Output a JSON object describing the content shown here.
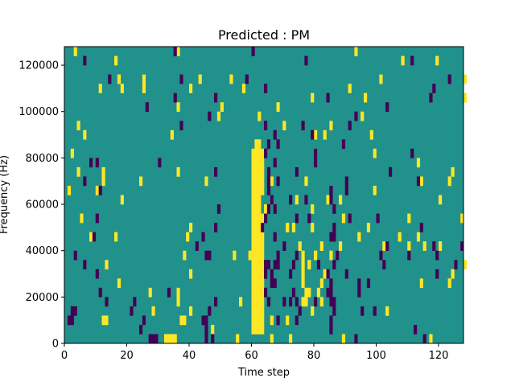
{
  "chart_data": {
    "type": "heatmap",
    "title": "Predicted : PM",
    "xlabel": "Time step",
    "ylabel": "Frequency (Hz)",
    "xlim": [
      0,
      128
    ],
    "ylim": [
      0,
      128000
    ],
    "xticks": [
      "0",
      "20",
      "40",
      "60",
      "80",
      "100",
      "120"
    ],
    "xtick_values": [
      0,
      20,
      40,
      60,
      80,
      100,
      120
    ],
    "yticks": [
      "0",
      "20000",
      "40000",
      "60000",
      "80000",
      "100000",
      "120000"
    ],
    "ytick_values": [
      0,
      20000,
      40000,
      60000,
      80000,
      100000,
      120000
    ],
    "grid": false,
    "colors": {
      "background": "#21918c",
      "high": "#fde725",
      "low": "#440154"
    },
    "bin_size": {
      "time": 1,
      "frequency": 4000
    },
    "high_cells": [
      [
        3,
        124000
      ],
      [
        16,
        120000
      ],
      [
        36,
        124000
      ],
      [
        93,
        124000
      ],
      [
        108,
        120000
      ],
      [
        119,
        120000
      ],
      [
        17,
        112000
      ],
      [
        25,
        112000
      ],
      [
        43,
        112000
      ],
      [
        53,
        112000
      ],
      [
        101,
        112000
      ],
      [
        128,
        112000
      ],
      [
        11,
        108000
      ],
      [
        18,
        108000
      ],
      [
        25,
        108000
      ],
      [
        40,
        108000
      ],
      [
        57,
        108000
      ],
      [
        91,
        108000
      ],
      [
        79,
        104000
      ],
      [
        96,
        104000
      ],
      [
        128,
        104000
      ],
      [
        36,
        100000
      ],
      [
        50,
        100000
      ],
      [
        68,
        100000
      ],
      [
        49,
        96000
      ],
      [
        62,
        96000
      ],
      [
        95,
        96000
      ],
      [
        4,
        92000
      ],
      [
        70,
        92000
      ],
      [
        85,
        92000
      ],
      [
        6,
        88000
      ],
      [
        34,
        88000
      ],
      [
        80,
        88000
      ],
      [
        83,
        88000
      ],
      [
        98,
        88000
      ],
      [
        61,
        84000
      ],
      [
        62,
        84000
      ],
      [
        60,
        80000
      ],
      [
        61,
        80000
      ],
      [
        62,
        80000
      ],
      [
        63,
        80000
      ],
      [
        2,
        80000
      ],
      [
        99,
        80000
      ],
      [
        60,
        76000
      ],
      [
        61,
        76000
      ],
      [
        62,
        76000
      ],
      [
        63,
        76000
      ],
      [
        113,
        76000
      ],
      [
        60,
        72000
      ],
      [
        61,
        72000
      ],
      [
        62,
        72000
      ],
      [
        63,
        72000
      ],
      [
        4,
        72000
      ],
      [
        12,
        72000
      ],
      [
        36,
        72000
      ],
      [
        124,
        72000
      ],
      [
        60,
        68000
      ],
      [
        61,
        68000
      ],
      [
        62,
        68000
      ],
      [
        63,
        68000
      ],
      [
        66,
        68000
      ],
      [
        12,
        68000
      ],
      [
        24,
        68000
      ],
      [
        45,
        68000
      ],
      [
        77,
        68000
      ],
      [
        114,
        68000
      ],
      [
        123,
        68000
      ],
      [
        60,
        64000
      ],
      [
        61,
        64000
      ],
      [
        62,
        64000
      ],
      [
        63,
        64000
      ],
      [
        1,
        64000
      ],
      [
        10,
        64000
      ],
      [
        99,
        64000
      ],
      [
        60,
        60000
      ],
      [
        61,
        60000
      ],
      [
        62,
        60000
      ],
      [
        66,
        60000
      ],
      [
        18,
        60000
      ],
      [
        74,
        60000
      ],
      [
        84,
        60000
      ],
      [
        88,
        60000
      ],
      [
        120,
        60000
      ],
      [
        60,
        56000
      ],
      [
        61,
        56000
      ],
      [
        62,
        56000
      ],
      [
        64,
        56000
      ],
      [
        79,
        56000
      ],
      [
        60,
        52000
      ],
      [
        61,
        52000
      ],
      [
        62,
        52000
      ],
      [
        63,
        52000
      ],
      [
        5,
        52000
      ],
      [
        89,
        52000
      ],
      [
        110,
        52000
      ],
      [
        127,
        52000
      ],
      [
        60,
        48000
      ],
      [
        61,
        48000
      ],
      [
        62,
        48000
      ],
      [
        63,
        48000
      ],
      [
        40,
        48000
      ],
      [
        71,
        48000
      ],
      [
        73,
        48000
      ],
      [
        79,
        48000
      ],
      [
        97,
        48000
      ],
      [
        60,
        44000
      ],
      [
        61,
        44000
      ],
      [
        62,
        44000
      ],
      [
        63,
        44000
      ],
      [
        8,
        44000
      ],
      [
        16,
        44000
      ],
      [
        39,
        44000
      ],
      [
        94,
        44000
      ],
      [
        107,
        44000
      ],
      [
        113,
        44000
      ],
      [
        60,
        40000
      ],
      [
        61,
        40000
      ],
      [
        62,
        40000
      ],
      [
        63,
        40000
      ],
      [
        75,
        40000
      ],
      [
        82,
        40000
      ],
      [
        88,
        40000
      ],
      [
        102,
        40000
      ],
      [
        110,
        40000
      ],
      [
        115,
        40000
      ],
      [
        120,
        40000
      ],
      [
        59,
        36000
      ],
      [
        60,
        36000
      ],
      [
        61,
        36000
      ],
      [
        62,
        36000
      ],
      [
        63,
        36000
      ],
      [
        76,
        36000
      ],
      [
        80,
        36000
      ],
      [
        85,
        36000
      ],
      [
        38,
        36000
      ],
      [
        54,
        36000
      ],
      [
        87,
        36000
      ],
      [
        60,
        32000
      ],
      [
        61,
        32000
      ],
      [
        62,
        32000
      ],
      [
        63,
        32000
      ],
      [
        76,
        32000
      ],
      [
        78,
        32000
      ],
      [
        13,
        32000
      ],
      [
        128,
        32000
      ],
      [
        60,
        28000
      ],
      [
        61,
        28000
      ],
      [
        62,
        28000
      ],
      [
        63,
        28000
      ],
      [
        76,
        28000
      ],
      [
        83,
        28000
      ],
      [
        40,
        28000
      ],
      [
        124,
        28000
      ],
      [
        60,
        24000
      ],
      [
        61,
        24000
      ],
      [
        62,
        24000
      ],
      [
        63,
        24000
      ],
      [
        76,
        24000
      ],
      [
        82,
        24000
      ],
      [
        17,
        24000
      ],
      [
        114,
        24000
      ],
      [
        123,
        24000
      ],
      [
        60,
        20000
      ],
      [
        61,
        20000
      ],
      [
        62,
        20000
      ],
      [
        63,
        20000
      ],
      [
        77,
        20000
      ],
      [
        78,
        20000
      ],
      [
        81,
        20000
      ],
      [
        27,
        20000
      ],
      [
        36,
        20000
      ],
      [
        60,
        16000
      ],
      [
        61,
        16000
      ],
      [
        62,
        16000
      ],
      [
        63,
        16000
      ],
      [
        56,
        16000
      ],
      [
        76,
        16000
      ],
      [
        77,
        16000
      ],
      [
        82,
        16000
      ],
      [
        36,
        16000
      ],
      [
        60,
        12000
      ],
      [
        61,
        12000
      ],
      [
        62,
        12000
      ],
      [
        63,
        12000
      ],
      [
        40,
        12000
      ],
      [
        28,
        12000
      ],
      [
        79,
        12000
      ],
      [
        103,
        12000
      ],
      [
        60,
        8000
      ],
      [
        61,
        8000
      ],
      [
        62,
        8000
      ],
      [
        63,
        8000
      ],
      [
        12,
        8000
      ],
      [
        13,
        8000
      ],
      [
        37,
        8000
      ],
      [
        38,
        8000
      ],
      [
        66,
        8000
      ],
      [
        71,
        8000
      ],
      [
        60,
        4000
      ],
      [
        61,
        4000
      ],
      [
        62,
        4000
      ],
      [
        63,
        4000
      ],
      [
        47,
        4000
      ],
      [
        32,
        0
      ],
      [
        33,
        0
      ],
      [
        34,
        0
      ],
      [
        35,
        0
      ],
      [
        55,
        0
      ],
      [
        66,
        0
      ],
      [
        72,
        0
      ],
      [
        89,
        0
      ],
      [
        117,
        0
      ]
    ],
    "low_cells": [
      [
        35,
        124000
      ],
      [
        60,
        124000
      ],
      [
        6,
        120000
      ],
      [
        77,
        120000
      ],
      [
        111,
        120000
      ],
      [
        14,
        112000
      ],
      [
        37,
        112000
      ],
      [
        58,
        112000
      ],
      [
        123,
        112000
      ],
      [
        64,
        108000
      ],
      [
        118,
        108000
      ],
      [
        35,
        104000
      ],
      [
        48,
        104000
      ],
      [
        84,
        104000
      ],
      [
        117,
        104000
      ],
      [
        26,
        100000
      ],
      [
        103,
        100000
      ],
      [
        46,
        96000
      ],
      [
        93,
        96000
      ],
      [
        37,
        92000
      ],
      [
        64,
        92000
      ],
      [
        76,
        92000
      ],
      [
        91,
        92000
      ],
      [
        67,
        88000
      ],
      [
        79,
        88000
      ],
      [
        65,
        84000
      ],
      [
        68,
        84000
      ],
      [
        89,
        84000
      ],
      [
        64,
        80000
      ],
      [
        80,
        80000
      ],
      [
        111,
        80000
      ],
      [
        8,
        76000
      ],
      [
        10,
        76000
      ],
      [
        30,
        76000
      ],
      [
        67,
        76000
      ],
      [
        80,
        76000
      ],
      [
        65,
        72000
      ],
      [
        48,
        72000
      ],
      [
        74,
        72000
      ],
      [
        104,
        72000
      ],
      [
        6,
        68000
      ],
      [
        65,
        68000
      ],
      [
        68,
        68000
      ],
      [
        90,
        68000
      ],
      [
        113,
        68000
      ],
      [
        11,
        64000
      ],
      [
        65,
        64000
      ],
      [
        85,
        64000
      ],
      [
        90,
        64000
      ],
      [
        66,
        60000
      ],
      [
        72,
        60000
      ],
      [
        77,
        60000
      ],
      [
        85,
        60000
      ],
      [
        49,
        56000
      ],
      [
        65,
        56000
      ],
      [
        67,
        56000
      ],
      [
        86,
        56000
      ],
      [
        10,
        52000
      ],
      [
        64,
        52000
      ],
      [
        74,
        52000
      ],
      [
        78,
        52000
      ],
      [
        91,
        52000
      ],
      [
        100,
        52000
      ],
      [
        48,
        48000
      ],
      [
        63,
        48000
      ],
      [
        86,
        48000
      ],
      [
        114,
        48000
      ],
      [
        9,
        44000
      ],
      [
        44,
        44000
      ],
      [
        67,
        44000
      ],
      [
        85,
        44000
      ],
      [
        86,
        44000
      ],
      [
        42,
        40000
      ],
      [
        70,
        40000
      ],
      [
        103,
        40000
      ],
      [
        118,
        40000
      ],
      [
        127,
        40000
      ],
      [
        3,
        36000
      ],
      [
        45,
        36000
      ],
      [
        46,
        36000
      ],
      [
        68,
        36000
      ],
      [
        74,
        36000
      ],
      [
        87,
        36000
      ],
      [
        101,
        36000
      ],
      [
        110,
        36000
      ],
      [
        119,
        36000
      ],
      [
        6,
        32000
      ],
      [
        64,
        32000
      ],
      [
        65,
        32000
      ],
      [
        67,
        32000
      ],
      [
        68,
        32000
      ],
      [
        73,
        32000
      ],
      [
        81,
        32000
      ],
      [
        86,
        32000
      ],
      [
        102,
        32000
      ],
      [
        125,
        32000
      ],
      [
        10,
        28000
      ],
      [
        64,
        28000
      ],
      [
        66,
        28000
      ],
      [
        72,
        28000
      ],
      [
        84,
        28000
      ],
      [
        90,
        28000
      ],
      [
        119,
        28000
      ],
      [
        66,
        24000
      ],
      [
        67,
        24000
      ],
      [
        85,
        24000
      ],
      [
        94,
        24000
      ],
      [
        97,
        24000
      ],
      [
        11,
        20000
      ],
      [
        33,
        20000
      ],
      [
        64,
        20000
      ],
      [
        73,
        20000
      ],
      [
        84,
        20000
      ],
      [
        85,
        20000
      ],
      [
        94,
        20000
      ],
      [
        13,
        16000
      ],
      [
        22,
        16000
      ],
      [
        48,
        16000
      ],
      [
        65,
        16000
      ],
      [
        70,
        16000
      ],
      [
        72,
        16000
      ],
      [
        74,
        16000
      ],
      [
        80,
        16000
      ],
      [
        85,
        16000
      ],
      [
        86,
        16000
      ],
      [
        2,
        12000
      ],
      [
        3,
        12000
      ],
      [
        21,
        12000
      ],
      [
        46,
        12000
      ],
      [
        75,
        12000
      ],
      [
        86,
        12000
      ],
      [
        95,
        12000
      ],
      [
        99,
        12000
      ],
      [
        1,
        8000
      ],
      [
        2,
        8000
      ],
      [
        25,
        8000
      ],
      [
        44,
        8000
      ],
      [
        45,
        8000
      ],
      [
        68,
        8000
      ],
      [
        74,
        8000
      ],
      [
        85,
        8000
      ],
      [
        24,
        4000
      ],
      [
        45,
        4000
      ],
      [
        85,
        4000
      ],
      [
        112,
        4000
      ],
      [
        27,
        0
      ],
      [
        28,
        0
      ],
      [
        29,
        0
      ],
      [
        45,
        0
      ],
      [
        47,
        0
      ],
      [
        93,
        0
      ],
      [
        115,
        0
      ]
    ]
  }
}
